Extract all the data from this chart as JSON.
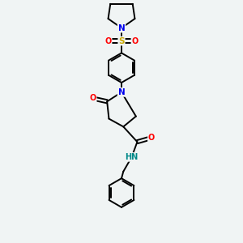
{
  "bg_color": "#f0f4f4",
  "atom_colors": {
    "C": "#000000",
    "N": "#0000ee",
    "O": "#ff0000",
    "S": "#ccaa00",
    "H": "#008888"
  },
  "figsize": [
    3.0,
    3.0
  ],
  "dpi": 100,
  "lw": 1.4,
  "xlim": [
    2.5,
    7.5
  ],
  "ylim": [
    0.5,
    13.5
  ]
}
